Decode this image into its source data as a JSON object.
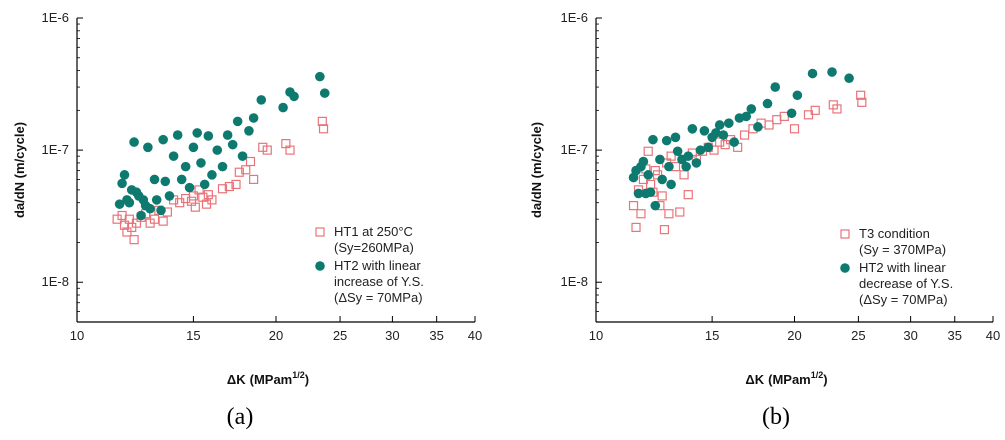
{
  "chart_data": [
    {
      "type": "scatter",
      "caption": "(a)",
      "xlabel": "ΔK",
      "xlabel_unit": "MPam",
      "xlabel_unit_sup": "1/2",
      "ylabel": "da/dN (m/cycle)",
      "xscale": "log",
      "yscale": "log",
      "xlim": [
        10,
        40
      ],
      "ylim": [
        5e-09,
        1e-06
      ],
      "x_ticks": [
        10,
        15,
        20,
        25,
        30,
        35,
        40
      ],
      "x_tick_labels": [
        "10",
        "15",
        "20",
        "25",
        "30",
        "35",
        "40"
      ],
      "y_ticks": [
        1e-08,
        1e-07,
        1e-06
      ],
      "y_tick_labels": [
        "1E-8",
        "1E-7",
        "1E-6"
      ],
      "grid": false,
      "legend_position": "right-middle",
      "series": [
        {
          "name": "HT1 at 250°C",
          "name_line2": "(Sy=260MPa)",
          "marker": "open-square",
          "color": "#e8747a",
          "points": [
            [
              11.5,
              3e-08
            ],
            [
              11.7,
              3.2e-08
            ],
            [
              11.8,
              2.7e-08
            ],
            [
              11.9,
              2.4e-08
            ],
            [
              12.0,
              3e-08
            ],
            [
              12.1,
              2.6e-08
            ],
            [
              12.2,
              2.1e-08
            ],
            [
              12.3,
              2.8e-08
            ],
            [
              12.5,
              3.1e-08
            ],
            [
              12.7,
              3.3e-08
            ],
            [
              12.9,
              2.8e-08
            ],
            [
              13.1,
              3e-08
            ],
            [
              13.3,
              3.5e-08
            ],
            [
              13.5,
              2.9e-08
            ],
            [
              13.7,
              3.4e-08
            ],
            [
              14.0,
              4.2e-08
            ],
            [
              14.3,
              4e-08
            ],
            [
              14.6,
              4.3e-08
            ],
            [
              14.9,
              4.1e-08
            ],
            [
              15.0,
              4.5e-08
            ],
            [
              15.1,
              3.7e-08
            ],
            [
              15.3,
              5e-08
            ],
            [
              15.5,
              4.4e-08
            ],
            [
              15.7,
              3.9e-08
            ],
            [
              15.8,
              4.6e-08
            ],
            [
              16.0,
              4.2e-08
            ],
            [
              16.6,
              5.1e-08
            ],
            [
              17.0,
              5.3e-08
            ],
            [
              17.4,
              5.5e-08
            ],
            [
              17.6,
              6.8e-08
            ],
            [
              18.0,
              7.1e-08
            ],
            [
              18.5,
              6e-08
            ],
            [
              18.3,
              8.2e-08
            ],
            [
              19.1,
              1.05e-07
            ],
            [
              19.4,
              1e-07
            ],
            [
              20.7,
              1.12e-07
            ],
            [
              21.0,
              1e-07
            ],
            [
              23.5,
              1.65e-07
            ],
            [
              23.6,
              1.45e-07
            ]
          ]
        },
        {
          "name": "HT2 with linear",
          "name_line2": "increase of Y.S.",
          "name_line3": "(ΔSy = 70MPa)",
          "marker": "filled-circle",
          "color": "#0e7a6f",
          "points": [
            [
              11.6,
              3.9e-08
            ],
            [
              11.7,
              5.6e-08
            ],
            [
              11.8,
              6.5e-08
            ],
            [
              11.9,
              4.2e-08
            ],
            [
              12.0,
              4e-08
            ],
            [
              12.1,
              5e-08
            ],
            [
              12.2,
              1.15e-07
            ],
            [
              12.3,
              4.8e-08
            ],
            [
              12.4,
              4.5e-08
            ],
            [
              12.5,
              3.2e-08
            ],
            [
              12.6,
              4.2e-08
            ],
            [
              12.7,
              3.8e-08
            ],
            [
              12.8,
              1.05e-07
            ],
            [
              12.9,
              3.6e-08
            ],
            [
              13.1,
              6e-08
            ],
            [
              13.2,
              4.2e-08
            ],
            [
              13.4,
              3.5e-08
            ],
            [
              13.5,
              1.2e-07
            ],
            [
              13.6,
              5.8e-08
            ],
            [
              13.8,
              4.5e-08
            ],
            [
              14.0,
              9e-08
            ],
            [
              14.2,
              1.3e-07
            ],
            [
              14.4,
              6e-08
            ],
            [
              14.6,
              7.5e-08
            ],
            [
              14.8,
              5.2e-08
            ],
            [
              15.0,
              1.05e-07
            ],
            [
              15.2,
              1.35e-07
            ],
            [
              15.4,
              8e-08
            ],
            [
              15.6,
              5.5e-08
            ],
            [
              15.8,
              1.28e-07
            ],
            [
              16.0,
              6.5e-08
            ],
            [
              16.3,
              1e-07
            ],
            [
              16.6,
              7.5e-08
            ],
            [
              16.9,
              1.3e-07
            ],
            [
              17.2,
              1.1e-07
            ],
            [
              17.5,
              1.65e-07
            ],
            [
              17.8,
              9e-08
            ],
            [
              18.2,
              1.4e-07
            ],
            [
              18.5,
              1.75e-07
            ],
            [
              19.0,
              2.4e-07
            ],
            [
              20.5,
              2.1e-07
            ],
            [
              21.0,
              2.75e-07
            ],
            [
              21.3,
              2.55e-07
            ],
            [
              23.3,
              3.6e-07
            ],
            [
              23.7,
              2.7e-07
            ]
          ]
        }
      ]
    },
    {
      "type": "scatter",
      "caption": "(b)",
      "xlabel": "ΔK",
      "xlabel_unit": "MPam",
      "xlabel_unit_sup": "1/2",
      "ylabel": "da/dN (m/cycle)",
      "xscale": "log",
      "yscale": "log",
      "xlim": [
        10,
        40
      ],
      "ylim": [
        5e-09,
        1e-06
      ],
      "x_ticks": [
        10,
        15,
        20,
        25,
        30,
        35,
        40
      ],
      "x_tick_labels": [
        "10",
        "15",
        "20",
        "25",
        "30",
        "35",
        "40"
      ],
      "y_ticks": [
        1e-08,
        1e-07,
        1e-06
      ],
      "y_tick_labels": [
        "1E-8",
        "1E-7",
        "1E-6"
      ],
      "grid": false,
      "legend_position": "right-bottom",
      "series": [
        {
          "name": "T3 condition",
          "name_line2": "(Sy = 370MPa)",
          "marker": "open-square",
          "color": "#e8747a",
          "points": [
            [
              11.4,
              3.8e-08
            ],
            [
              11.5,
              2.6e-08
            ],
            [
              11.6,
              5e-08
            ],
            [
              11.7,
              3.3e-08
            ],
            [
              11.8,
              6e-08
            ],
            [
              11.9,
              7.2e-08
            ],
            [
              12.0,
              9.8e-08
            ],
            [
              12.1,
              5.5e-08
            ],
            [
              12.2,
              4.8e-08
            ],
            [
              12.3,
              7e-08
            ],
            [
              12.4,
              6.5e-08
            ],
            [
              12.5,
              3.8e-08
            ],
            [
              12.6,
              4.5e-08
            ],
            [
              12.7,
              2.5e-08
            ],
            [
              12.8,
              8e-08
            ],
            [
              12.9,
              3.3e-08
            ],
            [
              13.0,
              9e-08
            ],
            [
              13.2,
              7.5e-08
            ],
            [
              13.4,
              3.4e-08
            ],
            [
              13.6,
              6.5e-08
            ],
            [
              13.8,
              4.6e-08
            ],
            [
              14.0,
              9.5e-08
            ],
            [
              14.2,
              8.5e-08
            ],
            [
              14.5,
              9.8e-08
            ],
            [
              14.8,
              1.05e-07
            ],
            [
              15.1,
              1e-07
            ],
            [
              15.4,
              1.15e-07
            ],
            [
              15.7,
              1.1e-07
            ],
            [
              16.0,
              1.2e-07
            ],
            [
              16.4,
              1.05e-07
            ],
            [
              16.8,
              1.3e-07
            ],
            [
              17.3,
              1.45e-07
            ],
            [
              17.8,
              1.6e-07
            ],
            [
              18.3,
              1.55e-07
            ],
            [
              18.8,
              1.7e-07
            ],
            [
              19.3,
              1.8e-07
            ],
            [
              20.0,
              1.45e-07
            ],
            [
              21.0,
              1.85e-07
            ],
            [
              21.5,
              2e-07
            ],
            [
              22.9,
              2.2e-07
            ],
            [
              23.2,
              2.05e-07
            ],
            [
              25.2,
              2.6e-07
            ],
            [
              25.3,
              2.3e-07
            ]
          ]
        },
        {
          "name": "HT2 with linear",
          "name_line2": "decrease of Y.S.",
          "name_line3": "(ΔSy = 70MPa)",
          "marker": "filled-circle",
          "color": "#0e7a6f",
          "points": [
            [
              11.4,
              6.2e-08
            ],
            [
              11.5,
              7e-08
            ],
            [
              11.6,
              4.7e-08
            ],
            [
              11.7,
              7.5e-08
            ],
            [
              11.8,
              8.2e-08
            ],
            [
              11.9,
              4.7e-08
            ],
            [
              12.0,
              6.5e-08
            ],
            [
              12.1,
              4.8e-08
            ],
            [
              12.2,
              1.2e-07
            ],
            [
              12.3,
              3.8e-08
            ],
            [
              12.5,
              8.5e-08
            ],
            [
              12.6,
              6e-08
            ],
            [
              12.8,
              1.18e-07
            ],
            [
              12.9,
              7.5e-08
            ],
            [
              13.0,
              5.5e-08
            ],
            [
              13.2,
              1.25e-07
            ],
            [
              13.3,
              9.8e-08
            ],
            [
              13.5,
              8.5e-08
            ],
            [
              13.7,
              7.5e-08
            ],
            [
              13.8,
              9e-08
            ],
            [
              14.0,
              1.45e-07
            ],
            [
              14.2,
              8e-08
            ],
            [
              14.4,
              1e-07
            ],
            [
              14.6,
              1.4e-07
            ],
            [
              14.8,
              1.05e-07
            ],
            [
              15.0,
              1.25e-07
            ],
            [
              15.2,
              1.35e-07
            ],
            [
              15.4,
              1.55e-07
            ],
            [
              15.6,
              1.3e-07
            ],
            [
              15.9,
              1.6e-07
            ],
            [
              16.2,
              1.15e-07
            ],
            [
              16.5,
              1.75e-07
            ],
            [
              16.9,
              1.8e-07
            ],
            [
              17.2,
              2.05e-07
            ],
            [
              17.6,
              1.5e-07
            ],
            [
              18.2,
              2.25e-07
            ],
            [
              18.7,
              3e-07
            ],
            [
              19.8,
              1.9e-07
            ],
            [
              20.2,
              2.6e-07
            ],
            [
              21.3,
              3.8e-07
            ],
            [
              22.8,
              3.9e-07
            ],
            [
              24.2,
              3.5e-07
            ]
          ]
        }
      ]
    }
  ]
}
